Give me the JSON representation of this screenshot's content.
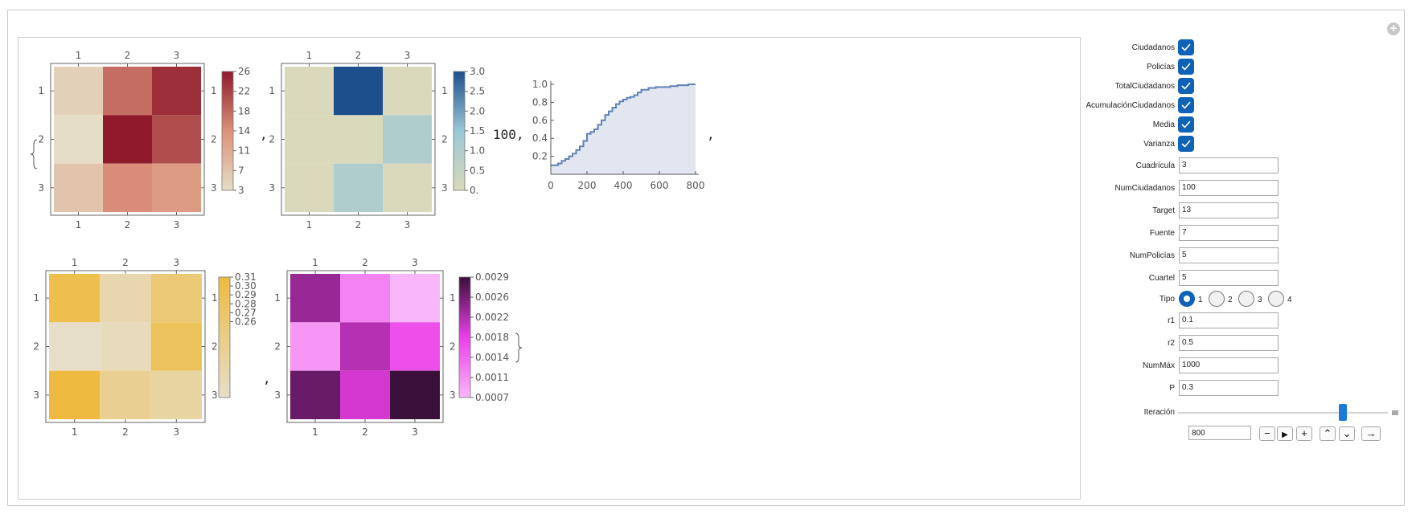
{
  "panel": {
    "controls": {
      "checkboxes": [
        {
          "label": "Ciudadanos",
          "checked": true
        },
        {
          "label": "Policías",
          "checked": true
        },
        {
          "label": "TotalCiudadanos",
          "checked": true
        },
        {
          "label": "AcumulaciónCiudadanos",
          "checked": true
        },
        {
          "label": "Media",
          "checked": true
        },
        {
          "label": "Varianza",
          "checked": true
        }
      ],
      "fields_a": [
        {
          "label": "Cuadrícula",
          "value": "3"
        },
        {
          "label": "NumCiudadanos",
          "value": "100"
        },
        {
          "label": "Target",
          "value": "13"
        },
        {
          "label": "Fuente",
          "value": "7"
        },
        {
          "label": "NumPolicías",
          "value": "5"
        },
        {
          "label": "Cuartel",
          "value": "5"
        }
      ],
      "tipo": {
        "label": "Tipo",
        "options": [
          "1",
          "2",
          "3",
          "4"
        ],
        "selected": "1"
      },
      "fields_b": [
        {
          "label": "r1",
          "value": "0.1"
        },
        {
          "label": "r2",
          "value": "0.5"
        },
        {
          "label": "NumMáx",
          "value": "1000"
        },
        {
          "label": "P",
          "value": "0.3"
        }
      ],
      "iteracion": {
        "label": "Iteración",
        "value": "800",
        "slider_fraction": 0.8
      },
      "anim_buttons": [
        "minus-icon",
        "play-icon",
        "plus-icon",
        "faster-icon",
        "slower-icon",
        "direction-icon"
      ]
    }
  },
  "output": {
    "separators": [
      ",",
      ",",
      "100,",
      ",",
      ","
    ],
    "frame_ticks": [
      "1",
      "2",
      "3"
    ]
  },
  "chart_data": [
    {
      "type": "heatmap",
      "rows": 3,
      "cols": 3,
      "values": [
        [
          5,
          18,
          24
        ],
        [
          3,
          26,
          21
        ],
        [
          7,
          15,
          13
        ]
      ],
      "legend_ticks": [
        "26",
        "22",
        "18",
        "14",
        "11",
        "7",
        "3"
      ],
      "colors": {
        "low": "#e5ddc6",
        "mid": "#dc917a",
        "high": "#8f1a2c"
      }
    },
    {
      "type": "heatmap",
      "rows": 3,
      "cols": 3,
      "values": [
        [
          0,
          3,
          0
        ],
        [
          0,
          0,
          1
        ],
        [
          0,
          1,
          0
        ]
      ],
      "legend_ticks": [
        "3.0",
        "2.5",
        "2.0",
        "1.5",
        "1.0",
        "0.5",
        "0."
      ],
      "colors": {
        "low": "#dad9bb",
        "mid": "#9ac7d6",
        "high": "#1e4f8d"
      }
    },
    {
      "type": "area",
      "x_ticks": [
        "0",
        "200",
        "400",
        "600",
        "800"
      ],
      "y_ticks": [
        "0.2",
        "0.4",
        "0.6",
        "0.8",
        "1.0"
      ],
      "xlim": [
        0,
        800
      ],
      "ylim": [
        0,
        1.0
      ],
      "x": [
        0,
        20,
        40,
        60,
        80,
        100,
        120,
        140,
        160,
        180,
        200,
        220,
        240,
        260,
        280,
        300,
        320,
        340,
        360,
        380,
        400,
        420,
        440,
        460,
        480,
        500,
        540,
        580,
        620,
        660,
        700,
        740,
        760,
        800
      ],
      "y": [
        0.1,
        0.1,
        0.12,
        0.15,
        0.17,
        0.2,
        0.23,
        0.27,
        0.31,
        0.37,
        0.45,
        0.47,
        0.5,
        0.55,
        0.6,
        0.66,
        0.7,
        0.74,
        0.78,
        0.81,
        0.83,
        0.85,
        0.86,
        0.88,
        0.91,
        0.94,
        0.96,
        0.97,
        0.97,
        0.98,
        0.99,
        0.99,
        1.0,
        1.0
      ],
      "colors": {
        "line": "#5f82b8",
        "fill": "#e1e6f0"
      }
    },
    {
      "type": "heatmap",
      "rows": 3,
      "cols": 3,
      "values": [
        [
          0.305,
          0.27,
          0.29
        ],
        [
          0.26,
          0.265,
          0.3
        ],
        [
          0.31,
          0.28,
          0.275
        ]
      ],
      "legend_ticks": [
        "0.31",
        "0.30",
        "0.29",
        "0.28",
        "0.27",
        "0.26"
      ],
      "colors": {
        "low": "#e6dec9",
        "high": "#eebb40"
      }
    },
    {
      "type": "heatmap",
      "rows": 3,
      "cols": 3,
      "values": [
        [
          0.0023,
          0.0011,
          0.0006
        ],
        [
          0.0009,
          0.0021,
          0.0016
        ],
        [
          0.0026,
          0.0019,
          0.0029
        ]
      ],
      "legend_ticks": [
        "0.0029",
        "0.0026",
        "0.0022",
        "0.0018",
        "0.0014",
        "0.0011",
        "0.0007"
      ],
      "colors": {
        "low": "#f9b7f9",
        "mid": "#ec3ee8",
        "high": "#3a0f3a"
      }
    }
  ]
}
